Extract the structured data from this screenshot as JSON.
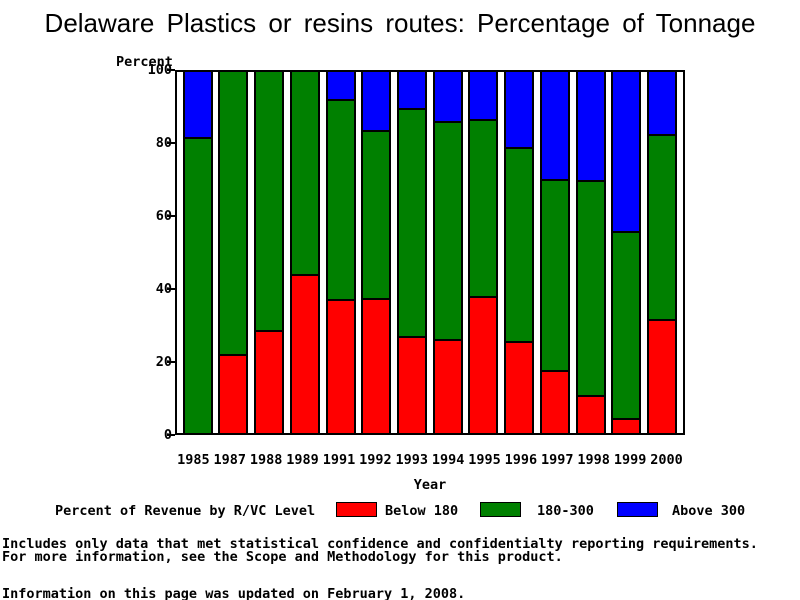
{
  "title": "Delaware Plastics or resins routes: Percentage of Tonnage",
  "y_axis": {
    "label": "Percent",
    "ticks": [
      0,
      20,
      40,
      60,
      80,
      100
    ]
  },
  "x_axis": {
    "label": "Year"
  },
  "chart_data": {
    "type": "bar",
    "stacked": true,
    "title": "Delaware Plastics or resins routes: Percentage of Tonnage",
    "xlabel": "Year",
    "ylabel": "Percent",
    "ylim": [
      0,
      100
    ],
    "grid": false,
    "legend_position": "bottom",
    "categories": [
      "1985",
      "1987",
      "1988",
      "1989",
      "1991",
      "1992",
      "1993",
      "1994",
      "1995",
      "1996",
      "1997",
      "1998",
      "1999",
      "2000"
    ],
    "series": [
      {
        "name": "Below 180",
        "color": "#ff0000",
        "values": [
          0,
          21.4,
          28.0,
          43.8,
          36.9,
          37.2,
          26.5,
          25.7,
          37.8,
          25.3,
          17.1,
          10.2,
          3.7,
          31.4
        ]
      },
      {
        "name": "180-300",
        "color": "#008000",
        "values": [
          81.9,
          78.6,
          72.0,
          56.2,
          55.4,
          46.5,
          63.5,
          60.7,
          49.0,
          53.7,
          53.0,
          59.6,
          51.8,
          51.2
        ]
      },
      {
        "name": "Above 300",
        "color": "#0000ff",
        "values": [
          18.1,
          0,
          0,
          0,
          7.7,
          16.3,
          10.0,
          13.6,
          13.2,
          21.0,
          29.9,
          30.2,
          44.5,
          17.4
        ]
      }
    ]
  },
  "legend": {
    "label": "Percent of Revenue by R/VC Level",
    "items": [
      {
        "label": "Below 180",
        "color": "#ff0000"
      },
      {
        "label": "180-300",
        "color": "#008000"
      },
      {
        "label": "Above 300",
        "color": "#0000ff"
      }
    ]
  },
  "footer": {
    "line1": "Includes only data that met statistical confidence and confidentialty reporting requirements.",
    "line2": "For more information, see the Scope and Methodology for this product.",
    "line3": "Information on this page was updated on February 1, 2008."
  }
}
